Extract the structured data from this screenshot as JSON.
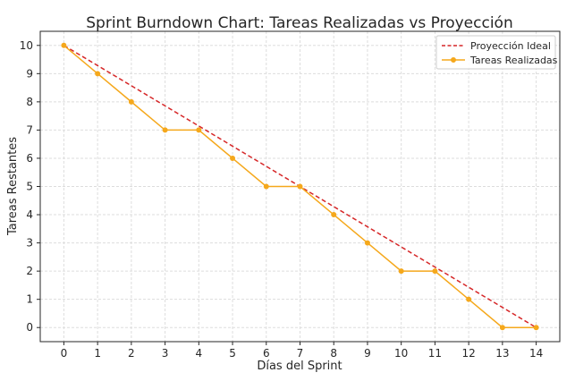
{
  "chart_data": {
    "type": "line",
    "title": "Sprint Burndown Chart: Tareas Realizadas vs Proyección",
    "xlabel": "Días del Sprint",
    "ylabel": "Tareas Restantes",
    "x": [
      0,
      1,
      2,
      3,
      4,
      5,
      6,
      7,
      8,
      9,
      10,
      11,
      12,
      13,
      14
    ],
    "xlim": [
      -0.7,
      14.7
    ],
    "ylim": [
      -0.5,
      10.5
    ],
    "xticks": [
      0,
      1,
      2,
      3,
      4,
      5,
      6,
      7,
      8,
      9,
      10,
      11,
      12,
      13,
      14
    ],
    "yticks": [
      0,
      1,
      2,
      3,
      4,
      5,
      6,
      7,
      8,
      9,
      10
    ],
    "grid": true,
    "legend_position": "top-right",
    "series": [
      {
        "name": "Proyección Ideal",
        "style": "dashed",
        "color": "#d62728",
        "values": [
          10,
          9.286,
          8.571,
          7.857,
          7.143,
          6.429,
          5.714,
          5,
          4.286,
          3.571,
          2.857,
          2.143,
          1.429,
          0.714,
          0
        ]
      },
      {
        "name": "Tareas Realizadas",
        "style": "solid-markers",
        "color": "#f5a81c",
        "values": [
          10,
          9,
          8,
          7,
          7,
          6,
          5,
          5,
          4,
          3,
          2,
          2,
          1,
          0,
          0
        ]
      }
    ]
  }
}
